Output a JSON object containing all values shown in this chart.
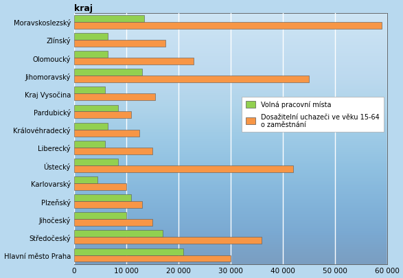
{
  "regions": [
    "Hlavní město Praha",
    "Středočeský",
    "Jihočeský",
    "Plzeňský",
    "Karlovarský",
    "Ústecký",
    "Liberecký",
    "Královéhradecký",
    "Pardubický",
    "Kraj Vysočina",
    "Jihomoravský",
    "Olomoucký",
    "Zlínský",
    "Moravskoslezský"
  ],
  "volna_mista": [
    21000,
    17000,
    10000,
    11000,
    4500,
    8500,
    6000,
    6500,
    8500,
    6000,
    13000,
    6500,
    6500,
    13500
  ],
  "uchazeci": [
    30000,
    36000,
    15000,
    13000,
    10000,
    42000,
    15000,
    12500,
    11000,
    15500,
    45000,
    23000,
    17500,
    59000
  ],
  "color_volna": "#92d050",
  "color_uchazeci": "#f79646",
  "title": "kraj",
  "xtick_labels": [
    "0",
    "10 000",
    "20 000",
    "30 000",
    "40 000",
    "50 000",
    "60 000"
  ],
  "xlim": [
    0,
    60000
  ],
  "legend_volna": "Volná pracovní místa",
  "legend_uchazeci": "Dosažitelní uchazeči ve věku 15-64\no zaměstnání",
  "bar_height": 0.38
}
